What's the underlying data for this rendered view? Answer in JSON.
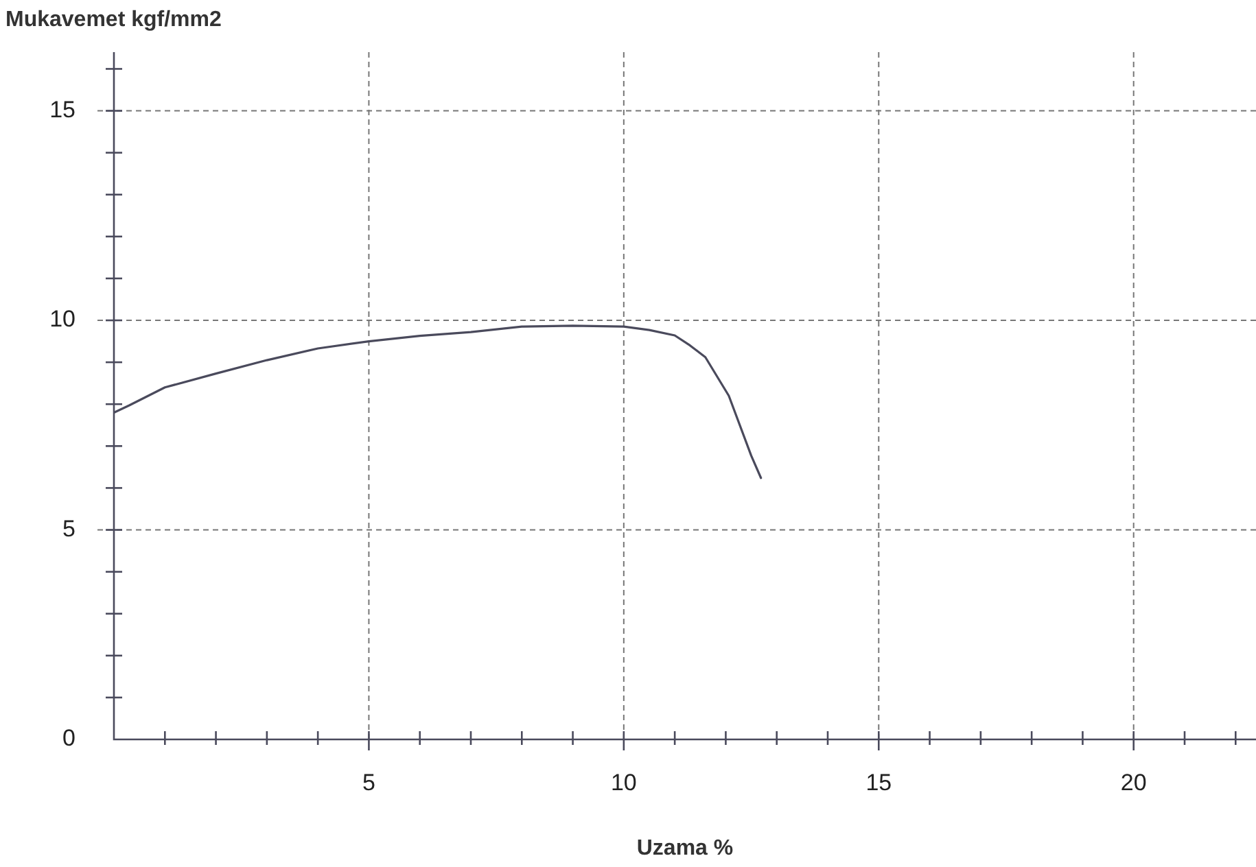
{
  "chart_data": {
    "type": "line",
    "xlabel": "Uzama %",
    "ylabel": "Mukavemet kgf/mm2",
    "xlim": [
      0,
      22.4
    ],
    "ylim": [
      0,
      16.4
    ],
    "xticks": [
      {
        "value": 0,
        "label": null
      },
      {
        "value": 1,
        "label": null
      },
      {
        "value": 2,
        "label": null
      },
      {
        "value": 3,
        "label": null
      },
      {
        "value": 4,
        "label": null
      },
      5,
      {
        "value": 6,
        "label": null
      },
      {
        "value": 7,
        "label": null
      },
      {
        "value": 8,
        "label": null
      },
      {
        "value": 9,
        "label": null
      },
      10,
      {
        "value": 11,
        "label": null
      },
      {
        "value": 12,
        "label": null
      },
      {
        "value": 13,
        "label": null
      },
      {
        "value": 14,
        "label": null
      },
      15,
      {
        "value": 16,
        "label": null
      },
      {
        "value": 17,
        "label": null
      },
      {
        "value": 18,
        "label": null
      },
      {
        "value": 19,
        "label": null
      },
      20,
      {
        "value": 21,
        "label": null
      },
      {
        "value": 22,
        "label": null
      }
    ],
    "yticks": [
      0,
      {
        "value": 1,
        "label": null
      },
      {
        "value": 2,
        "label": null
      },
      {
        "value": 3,
        "label": null
      },
      {
        "value": 4,
        "label": null
      },
      5,
      {
        "value": 6,
        "label": null
      },
      {
        "value": 7,
        "label": null
      },
      {
        "value": 8,
        "label": null
      },
      {
        "value": 9,
        "label": null
      },
      10,
      {
        "value": 11,
        "label": null
      },
      {
        "value": 12,
        "label": null
      },
      {
        "value": 13,
        "label": null
      },
      {
        "value": 14,
        "label": null
      },
      15,
      {
        "value": 16,
        "label": null
      }
    ],
    "grid": true,
    "legend": false,
    "marker": "none",
    "line_style": "solid",
    "series": [
      {
        "color": "#4a4a5c",
        "x": [
          0,
          0.3,
          1,
          2,
          3,
          4,
          5,
          6,
          7,
          8,
          9,
          10,
          10.5,
          11,
          11.3,
          11.6,
          12.06,
          12.5,
          12.69
        ],
        "values": [
          7.8,
          7.97,
          8.4,
          8.73,
          9.05,
          9.33,
          9.5,
          9.63,
          9.72,
          9.85,
          9.87,
          9.85,
          9.77,
          9.64,
          9.4,
          9.12,
          8.2,
          6.77,
          6.24
        ]
      }
    ]
  }
}
